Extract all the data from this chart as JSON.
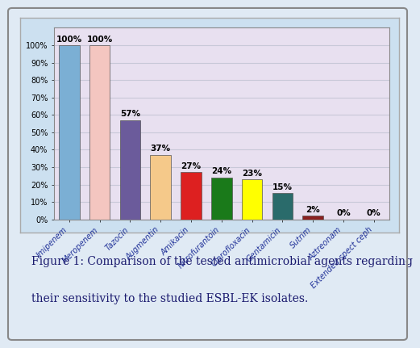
{
  "categories": [
    "Imipenem",
    "Meropenem",
    "Tazocin",
    "Augmentin",
    "Amikacin",
    "Nitrofurantoin",
    "Ciprofloxacin",
    "Gentamicin",
    "Sutrim",
    "Aztreonam",
    "Extended spect ceph"
  ],
  "values": [
    100,
    100,
    57,
    37,
    27,
    24,
    23,
    15,
    2,
    0,
    0
  ],
  "bar_colors": [
    "#7bafd4",
    "#f4c6c0",
    "#6b5b9b",
    "#f5c98a",
    "#dd2020",
    "#1a7a1a",
    "#ffff00",
    "#2a6b6b",
    "#8b2020",
    "#cc8800",
    "#ccb0a8"
  ],
  "ylim": [
    0,
    110
  ],
  "yticks": [
    0,
    10,
    20,
    30,
    40,
    50,
    60,
    70,
    80,
    90,
    100
  ],
  "ytick_labels": [
    "0%",
    "10%",
    "20%",
    "30%",
    "40%",
    "50%",
    "60%",
    "70%",
    "80%",
    "90%",
    "100%"
  ],
  "chart_bg_color": "#e8e0f0",
  "outer_chart_bg": "#cce0f0",
  "figure_bg_color": "#e0eaf4",
  "caption_line1": "Figure 1: Comparison of the tested antimicrobial agents regarding",
  "caption_line2": "their sensitivity to the studied ESBL-EK isolates.",
  "caption_fontsize": 10,
  "bar_label_fontsize": 7.5,
  "tick_label_fontsize": 7,
  "xlabel_color": "#223399",
  "grid_color": "#c8c8d8",
  "border_color": "#aaaaaa"
}
